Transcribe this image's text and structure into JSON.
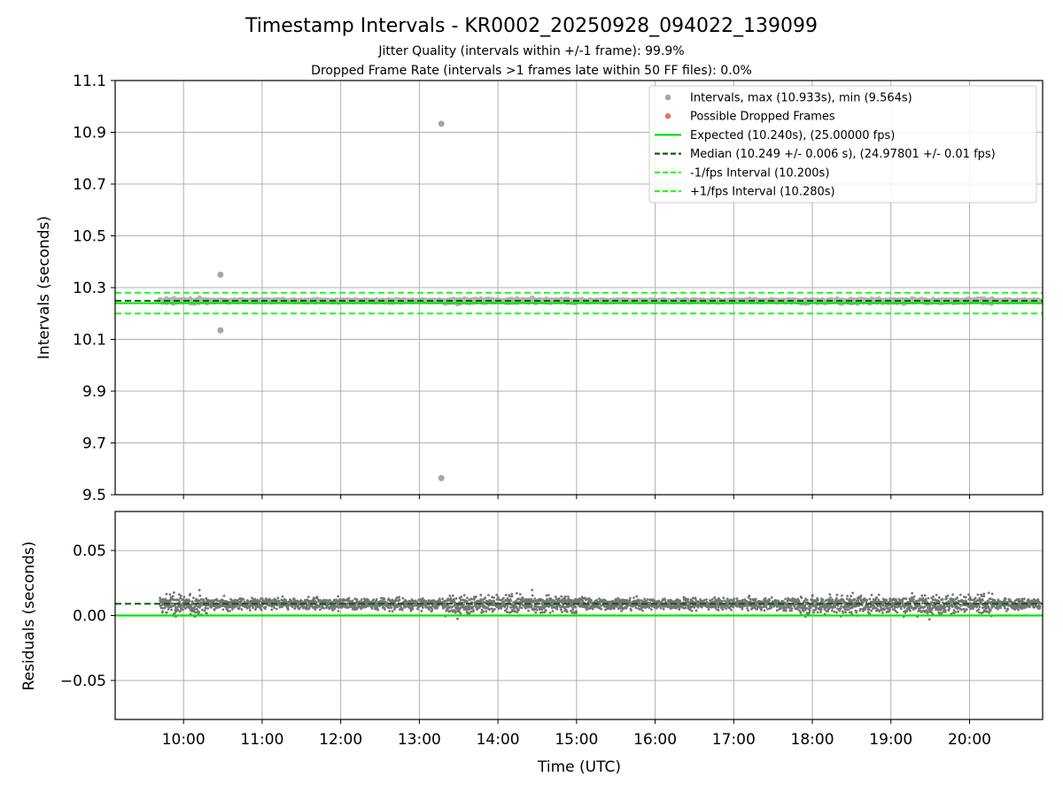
{
  "chart_data": {
    "title": "Timestamp Intervals - KR0002_20250928_094022_139099",
    "subtitle_lines": [
      "Jitter Quality (intervals within +/-1 frame): 99.9%",
      "Dropped Frame Rate (intervals >1 frames late within 50 FF files): 0.0%"
    ],
    "xlabel": "Time (UTC)",
    "x_ticks": [
      "10:00",
      "11:00",
      "12:00",
      "13:00",
      "14:00",
      "15:00",
      "16:00",
      "17:00",
      "18:00",
      "19:00",
      "20:00"
    ],
    "x_tick_hours": [
      10,
      11,
      12,
      13,
      14,
      15,
      16,
      17,
      18,
      19,
      20
    ],
    "xlim_hours": [
      9.13,
      20.93
    ],
    "data_span_hours": [
      9.7,
      20.9
    ],
    "top": {
      "type": "scatter",
      "ylabel": "Intervals (seconds)",
      "ylim": [
        9.5,
        11.1
      ],
      "y_ticks": [
        "9.5",
        "9.7",
        "9.9",
        "10.1",
        "10.3",
        "10.5",
        "10.7",
        "10.9",
        "11.1"
      ],
      "y_tick_values": [
        9.5,
        9.7,
        9.9,
        10.1,
        10.3,
        10.5,
        10.7,
        10.9,
        11.1
      ],
      "grid": true,
      "legend_position": "top-right",
      "legend": [
        {
          "label": "Intervals, max (10.933s), min (9.564s)",
          "marker": "dot",
          "color": "#a6a6a6"
        },
        {
          "label": "Possible Dropped Frames",
          "marker": "dot",
          "color": "#ef6f6f"
        },
        {
          "label": "Expected (10.240s), (25.00000 fps)",
          "marker": "solid",
          "color": "#00e600"
        },
        {
          "label": "Median (10.249 +/- 0.006 s), (24.97801 +/- 0.01 fps)",
          "marker": "dashed",
          "color": "#006400"
        },
        {
          "label": "-1/fps Interval (10.200s)",
          "marker": "dashed",
          "color": "#1aff1a"
        },
        {
          "label": "+1/fps Interval (10.280s)",
          "marker": "dashed",
          "color": "#1aff1a"
        }
      ],
      "expected": 10.24,
      "median": 10.249,
      "lower_bound": 10.2,
      "upper_bound": 10.28,
      "outliers": [
        {
          "t": 10.47,
          "y": 10.35
        },
        {
          "t": 10.47,
          "y": 10.135
        },
        {
          "t": 13.28,
          "y": 10.933
        },
        {
          "t": 13.28,
          "y": 9.564
        }
      ],
      "point_color": "#a6a6a6"
    },
    "bottom": {
      "type": "scatter",
      "ylabel": "Residuals (seconds)",
      "ylim": [
        -0.08,
        0.08
      ],
      "y_ticks": [
        "−0.05",
        "0.00",
        "0.05"
      ],
      "y_tick_values": [
        -0.05,
        0.0,
        0.05
      ],
      "grid": true,
      "expected_residual": 0.0,
      "median_residual": 0.009,
      "point_color": "#757575"
    },
    "colors": {
      "expected": "#00e600",
      "median": "#006400",
      "bounds": "#1aff1a",
      "grid": "#b0b0b0"
    }
  }
}
